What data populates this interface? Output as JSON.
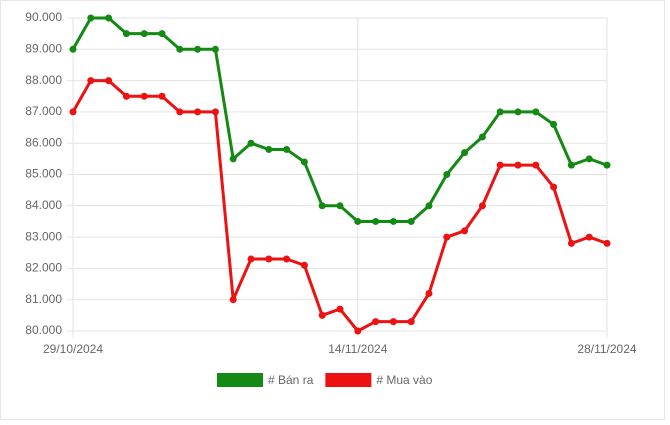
{
  "chart_data": {
    "type": "line",
    "categories": [
      "29/10/2024",
      null,
      null,
      null,
      null,
      null,
      null,
      null,
      null,
      null,
      null,
      null,
      null,
      null,
      null,
      null,
      "14/11/2024",
      null,
      null,
      null,
      null,
      null,
      null,
      null,
      null,
      null,
      null,
      null,
      null,
      null,
      "28/11/2024"
    ],
    "series": [
      {
        "name": "# Bán ra",
        "color": "#138a13",
        "values": [
          89000,
          90000,
          90000,
          89500,
          89500,
          89500,
          89000,
          89000,
          89000,
          85500,
          86000,
          85800,
          85800,
          85400,
          84000,
          84000,
          83500,
          83500,
          83500,
          83500,
          84000,
          85000,
          85700,
          86200,
          87000,
          87000,
          87000,
          86600,
          85300,
          85500,
          85300
        ]
      },
      {
        "name": "# Mua vào",
        "color": "#ee1111",
        "values": [
          87000,
          88000,
          88000,
          87500,
          87500,
          87500,
          87000,
          87000,
          87000,
          81000,
          82300,
          82300,
          82300,
          82100,
          80500,
          80700,
          80000,
          80300,
          80300,
          80300,
          81200,
          83000,
          83200,
          84000,
          85300,
          85300,
          85300,
          84600,
          82800,
          83000,
          82800
        ]
      }
    ],
    "ylim": [
      80000,
      90000
    ],
    "yticks": [
      {
        "value": 80000,
        "label": "80.000"
      },
      {
        "value": 81000,
        "label": "81.000"
      },
      {
        "value": 82000,
        "label": "82.000"
      },
      {
        "value": 83000,
        "label": "83.000"
      },
      {
        "value": 84000,
        "label": "84.000"
      },
      {
        "value": 85000,
        "label": "85.000"
      },
      {
        "value": 86000,
        "label": "86.000"
      },
      {
        "value": 87000,
        "label": "87.000"
      },
      {
        "value": 88000,
        "label": "88.000"
      },
      {
        "value": 89000,
        "label": "89.000"
      },
      {
        "value": 90000,
        "label": "90.000"
      }
    ],
    "grid": true
  }
}
